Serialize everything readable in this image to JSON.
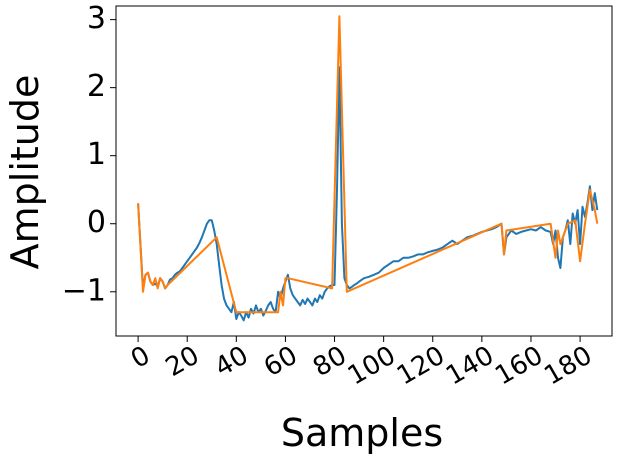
{
  "chart_data": {
    "type": "line",
    "title": "",
    "xlabel": "Samples",
    "ylabel": "Amplitude",
    "xlim": [
      -9,
      193
    ],
    "ylim": [
      -1.65,
      3.2
    ],
    "grid": false,
    "legend": "none",
    "x_ticks": [
      0,
      20,
      40,
      60,
      80,
      100,
      120,
      140,
      160,
      180
    ],
    "x_tick_labels": [
      "0",
      "20",
      "40",
      "60",
      "80",
      "100",
      "120",
      "140",
      "160",
      "180"
    ],
    "y_ticks": [
      -1,
      0,
      1,
      2,
      3
    ],
    "y_tick_labels": [
      "−1",
      "0",
      "1",
      "2",
      "3"
    ],
    "series": [
      {
        "color": "#1f77b4",
        "x": [
          0,
          2,
          3,
          4,
          5,
          6,
          7,
          8,
          9,
          10,
          11,
          12,
          13,
          14,
          15,
          16,
          17,
          18,
          19,
          20,
          21,
          22,
          23,
          24,
          25,
          26,
          27,
          28,
          29,
          30,
          31,
          32,
          33,
          34,
          35,
          36,
          37,
          38,
          39,
          40,
          41,
          42,
          43,
          44,
          45,
          46,
          47,
          48,
          49,
          50,
          51,
          52,
          53,
          54,
          55,
          56,
          57,
          58,
          59,
          60,
          61,
          62,
          63,
          64,
          65,
          66,
          67,
          68,
          69,
          70,
          71,
          72,
          73,
          74,
          75,
          76,
          77,
          78,
          79,
          80,
          81,
          82,
          83,
          84,
          85,
          86,
          87,
          88,
          89,
          90,
          92,
          94,
          96,
          98,
          100,
          102,
          104,
          106,
          108,
          110,
          112,
          114,
          116,
          118,
          120,
          122,
          124,
          126,
          128,
          130,
          132,
          134,
          136,
          138,
          140,
          142,
          144,
          146,
          148,
          149,
          150,
          152,
          154,
          156,
          158,
          160,
          162,
          164,
          166,
          168,
          169,
          170,
          171,
          172,
          173,
          174,
          175,
          176,
          177,
          178,
          179,
          180,
          181,
          182,
          183,
          184,
          185,
          186,
          187
        ],
        "y": [
          0.3,
          -0.95,
          -0.75,
          -0.72,
          -0.85,
          -0.9,
          -0.88,
          -0.92,
          -0.8,
          -0.85,
          -0.95,
          -0.9,
          -0.82,
          -0.8,
          -0.75,
          -0.72,
          -0.7,
          -0.65,
          -0.6,
          -0.55,
          -0.5,
          -0.45,
          -0.4,
          -0.35,
          -0.28,
          -0.2,
          -0.1,
          0.0,
          0.05,
          0.05,
          -0.1,
          -0.3,
          -0.6,
          -0.9,
          -1.1,
          -1.2,
          -1.25,
          -1.3,
          -1.15,
          -1.4,
          -1.3,
          -1.35,
          -1.42,
          -1.3,
          -1.38,
          -1.25,
          -1.32,
          -1.2,
          -1.3,
          -1.25,
          -1.35,
          -1.28,
          -1.2,
          -1.15,
          -1.25,
          -1.3,
          -1.0,
          -1.1,
          -0.95,
          -0.85,
          -0.75,
          -0.95,
          -1.05,
          -1.1,
          -1.15,
          -1.2,
          -1.12,
          -1.18,
          -1.1,
          -1.15,
          -1.2,
          -1.1,
          -1.15,
          -1.05,
          -1.1,
          -1.0,
          -0.95,
          -0.92,
          -0.9,
          -0.9,
          0.5,
          2.3,
          0.0,
          -0.8,
          -0.9,
          -0.95,
          -0.93,
          -0.9,
          -0.88,
          -0.85,
          -0.8,
          -0.78,
          -0.75,
          -0.72,
          -0.65,
          -0.6,
          -0.55,
          -0.55,
          -0.5,
          -0.5,
          -0.48,
          -0.45,
          -0.45,
          -0.42,
          -0.4,
          -0.38,
          -0.35,
          -0.3,
          -0.25,
          -0.3,
          -0.25,
          -0.2,
          -0.18,
          -0.15,
          -0.12,
          -0.1,
          -0.08,
          -0.05,
          0.0,
          -0.45,
          -0.2,
          -0.1,
          -0.15,
          -0.12,
          -0.1,
          -0.08,
          -0.1,
          -0.05,
          -0.1,
          -0.12,
          -0.3,
          -0.1,
          -0.5,
          -0.65,
          -0.2,
          -0.1,
          0.05,
          -0.3,
          0.15,
          0.0,
          0.2,
          -0.3,
          0.25,
          0.1,
          0.3,
          0.55,
          0.2,
          0.45,
          0.2
        ]
      },
      {
        "color": "#ff7f0e",
        "x": [
          0,
          2,
          3,
          4,
          5,
          6,
          7,
          8,
          9,
          10,
          11,
          12,
          32,
          40,
          57,
          58,
          59,
          60,
          61,
          79,
          82,
          85,
          148,
          149,
          150,
          168,
          170,
          171,
          172,
          175,
          178,
          180,
          182,
          184,
          186,
          187
        ],
        "y": [
          0.3,
          -1.0,
          -0.75,
          -0.72,
          -0.85,
          -0.9,
          -0.8,
          -0.95,
          -0.8,
          -0.85,
          -0.95,
          -0.9,
          -0.2,
          -1.3,
          -1.3,
          -1.0,
          -1.2,
          -0.8,
          -0.8,
          -0.95,
          3.05,
          -1.0,
          0.0,
          -0.45,
          -0.1,
          0.0,
          -0.5,
          -0.1,
          -0.3,
          0.0,
          0.05,
          -0.55,
          0.0,
          0.5,
          0.2,
          0.0
        ]
      }
    ]
  }
}
